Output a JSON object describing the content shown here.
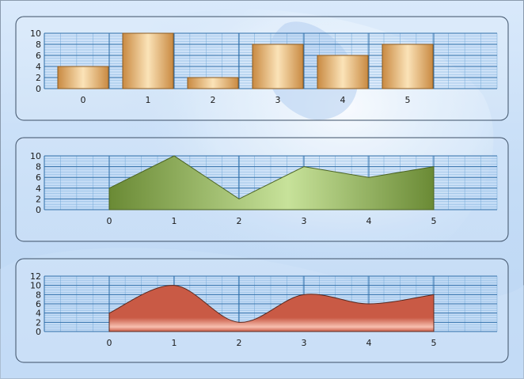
{
  "chart_data": [
    {
      "type": "bar",
      "categories": [
        "0",
        "1",
        "2",
        "3",
        "4",
        "5"
      ],
      "values": [
        4,
        10,
        2,
        8,
        6,
        8
      ],
      "ylim": [
        0,
        10
      ],
      "yticks": [
        "0",
        "2",
        "4",
        "6",
        "8",
        "10"
      ],
      "xticks": [
        "0",
        "1",
        "2",
        "3",
        "4",
        "5"
      ],
      "grid": true,
      "colors": {
        "fill_light": "#fbe3b8",
        "fill_dark": "#c98a42",
        "stroke": "#8a5a20"
      }
    },
    {
      "type": "area",
      "x": [
        0,
        1,
        2,
        3,
        4,
        5
      ],
      "values": [
        4,
        10,
        2,
        8,
        6,
        8
      ],
      "ylim": [
        0,
        10
      ],
      "yticks": [
        "0",
        "2",
        "4",
        "6",
        "8",
        "10"
      ],
      "xticks": [
        "0",
        "1",
        "2",
        "3",
        "4",
        "5"
      ],
      "grid": true,
      "colors": {
        "fill_light": "#c7e29a",
        "fill_dark": "#6a8a35",
        "stroke": "#4c6423"
      }
    },
    {
      "type": "area",
      "smooth": true,
      "x": [
        0,
        1,
        2,
        3,
        4,
        5
      ],
      "values": [
        4,
        10,
        2,
        8,
        6,
        8
      ],
      "ylim": [
        0,
        12
      ],
      "yticks": [
        "0",
        "2",
        "4",
        "6",
        "8",
        "10",
        "12"
      ],
      "xticks": [
        "0",
        "1",
        "2",
        "3",
        "4",
        "5"
      ],
      "grid": true,
      "colors": {
        "fill": "#c95a45",
        "highlight": "#f8c0b0",
        "stroke": "#5a2a20"
      }
    }
  ],
  "theme": {
    "frame_border": "#8a9aad",
    "panel_border": "#3c4f66",
    "grid_major": "#2f6ea8",
    "grid_minor": "#6fa6d6",
    "plot_bg": "#b6d4f3",
    "tick_text": "#1a1a1a"
  }
}
